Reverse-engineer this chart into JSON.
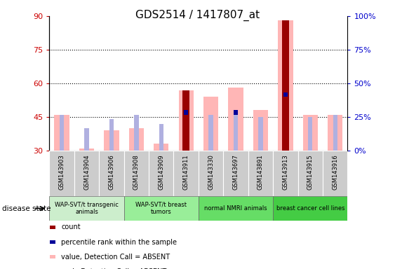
{
  "title": "GDS2514 / 1417807_at",
  "samples": [
    "GSM143903",
    "GSM143904",
    "GSM143906",
    "GSM143908",
    "GSM143909",
    "GSM143911",
    "GSM143330",
    "GSM143697",
    "GSM143891",
    "GSM143913",
    "GSM143915",
    "GSM143916"
  ],
  "value_absent": [
    46,
    31,
    39,
    40,
    33,
    57,
    54,
    58,
    48,
    88,
    46,
    46
  ],
  "rank_absent": [
    46,
    40,
    44,
    46,
    42,
    47,
    46,
    47,
    45,
    55,
    45,
    46
  ],
  "percentile_rank": [
    null,
    null,
    null,
    null,
    null,
    47,
    null,
    47,
    null,
    55,
    null,
    null
  ],
  "count": [
    null,
    null,
    null,
    null,
    null,
    57,
    null,
    null,
    null,
    88,
    null,
    null
  ],
  "ylim": [
    30,
    90
  ],
  "yticks_left": [
    30,
    45,
    60,
    75,
    90
  ],
  "yticks_right": [
    0,
    25,
    50,
    75,
    100
  ],
  "group_spans": [
    {
      "label": "WAP-SVT/t transgenic\nanimals",
      "start": 0,
      "end": 2,
      "color": "#cceecc"
    },
    {
      "label": "WAP-SVT/t breast\ntumors",
      "start": 3,
      "end": 5,
      "color": "#99ee99"
    },
    {
      "label": "normal NMRI animals",
      "start": 6,
      "end": 8,
      "color": "#66dd66"
    },
    {
      "label": "breast cancer cell lines",
      "start": 9,
      "end": 11,
      "color": "#44cc44"
    }
  ],
  "color_value_absent": "#ffb6b6",
  "color_rank_absent": "#b0b0e0",
  "color_count": "#990000",
  "color_percentile": "#000099",
  "tick_label_color_left": "#cc0000",
  "tick_label_color_right": "#0000cc",
  "sample_box_color": "#cccccc",
  "plot_bg_color": "#ffffff"
}
